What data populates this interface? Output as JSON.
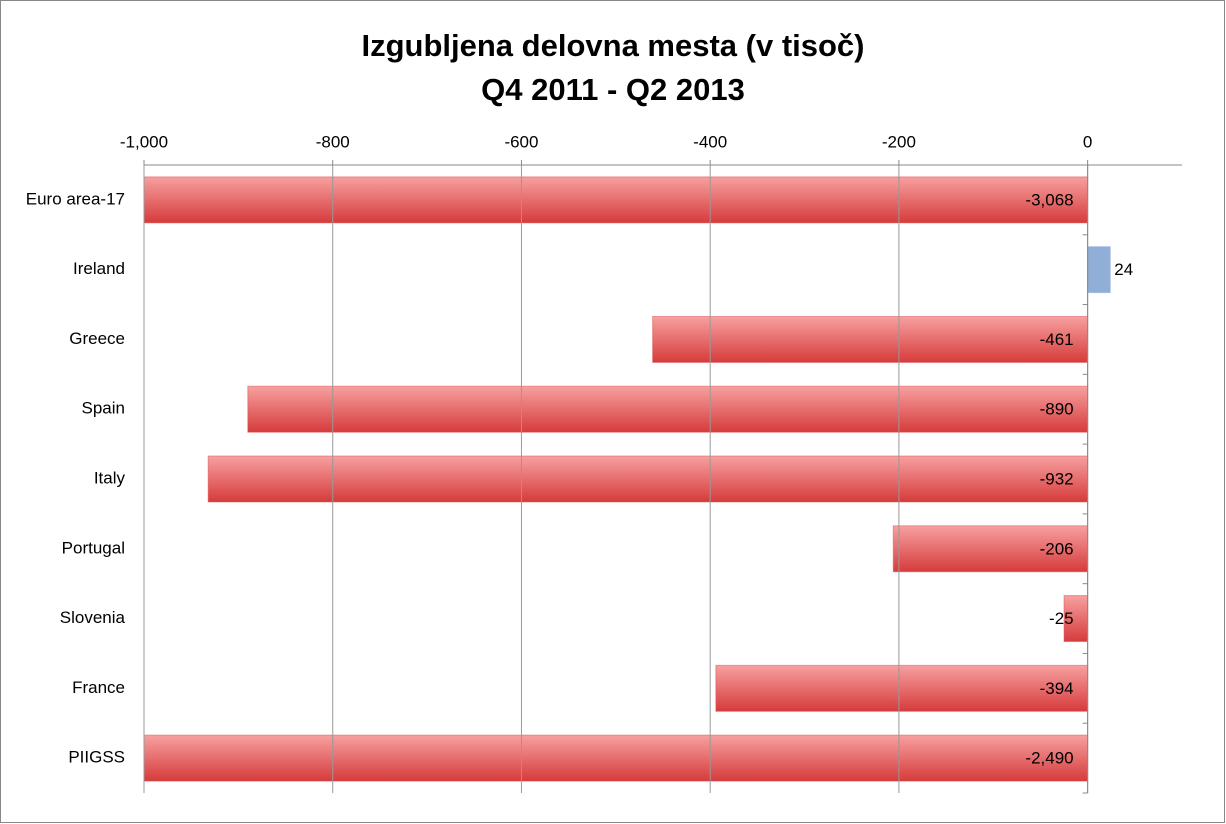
{
  "chart_data": {
    "type": "hbar",
    "title": "Izgubljena delovna mesta (v tisoč)",
    "subtitle": "Q4 2011 - Q2 2013",
    "categories": [
      "Euro area-17",
      "Ireland",
      "Greece",
      "Spain",
      "Italy",
      "Portugal",
      "Slovenia",
      "France",
      "PIIGSS"
    ],
    "values": [
      -3068,
      24,
      -461,
      -890,
      -932,
      -206,
      -25,
      -394,
      -2490
    ],
    "value_labels": [
      "-3,068",
      "24",
      "-461",
      "-890",
      "-932",
      "-206",
      "-25",
      "-394",
      "-2,490"
    ],
    "colors": [
      "#e05252",
      "#8fafd8",
      "#e05252",
      "#e05252",
      "#e05252",
      "#e05252",
      "#e05252",
      "#e05252",
      "#e05252"
    ],
    "xlim": [
      -1000,
      100
    ],
    "xticks": [
      {
        "value": -1000,
        "label": "-1,000"
      },
      -800,
      -600,
      -400,
      -200,
      0
    ],
    "grid": true
  }
}
